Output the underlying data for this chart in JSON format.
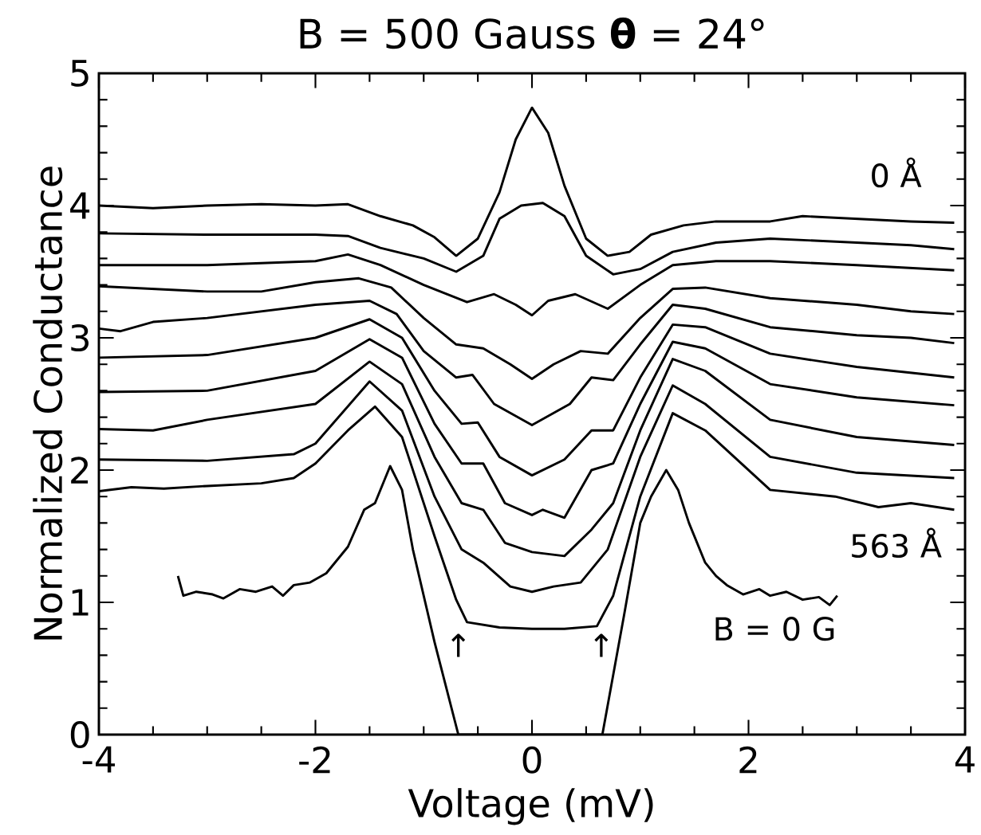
{
  "chart_data": {
    "type": "line",
    "title": "B = 500 Gauss  **θ** = 24°",
    "xlabel": "Voltage (mV)",
    "ylabel": "Normalized Conductance",
    "xlim": [
      -4,
      4
    ],
    "ylim": [
      0,
      5
    ],
    "xticks": [
      -4,
      -2,
      0,
      2,
      4
    ],
    "yticks": [
      0,
      1,
      2,
      3,
      4,
      5
    ],
    "line_style": "solid",
    "series": [
      {
        "color": "#000000",
        "x": [
          -4,
          -3.5,
          -3,
          -2.5,
          -2,
          -1.7,
          -1.4,
          -1.1,
          -0.9,
          -0.7,
          -0.5,
          -0.3,
          -0.15,
          0,
          0.15,
          0.3,
          0.5,
          0.7,
          0.9,
          1.1,
          1.4,
          1.7,
          2.2,
          2.5,
          3,
          3.5,
          3.9
        ],
        "values": [
          4.0,
          3.98,
          4.0,
          4.01,
          4.0,
          4.01,
          3.92,
          3.85,
          3.76,
          3.62,
          3.75,
          4.1,
          4.5,
          4.74,
          4.55,
          4.15,
          3.75,
          3.62,
          3.65,
          3.78,
          3.85,
          3.88,
          3.88,
          3.92,
          3.9,
          3.88,
          3.87
        ]
      },
      {
        "color": "#000000",
        "x": [
          -4,
          -3,
          -2,
          -1.7,
          -1.4,
          -1.0,
          -0.7,
          -0.45,
          -0.3,
          -0.1,
          0.1,
          0.3,
          0.5,
          0.75,
          1.0,
          1.3,
          1.7,
          2.2,
          3,
          3.5,
          3.9
        ],
        "values": [
          3.79,
          3.78,
          3.78,
          3.77,
          3.68,
          3.6,
          3.5,
          3.62,
          3.9,
          4.0,
          4.02,
          3.92,
          3.62,
          3.48,
          3.52,
          3.65,
          3.72,
          3.75,
          3.72,
          3.7,
          3.67
        ]
      },
      {
        "color": "#000000",
        "x": [
          -4,
          -3,
          -2,
          -1.7,
          -1.4,
          -1.0,
          -0.6,
          -0.35,
          -0.15,
          0,
          0.15,
          0.4,
          0.7,
          1.0,
          1.3,
          1.7,
          2.2,
          3,
          3.9
        ],
        "values": [
          3.55,
          3.55,
          3.58,
          3.63,
          3.55,
          3.4,
          3.27,
          3.33,
          3.25,
          3.17,
          3.28,
          3.33,
          3.22,
          3.4,
          3.55,
          3.58,
          3.58,
          3.55,
          3.51
        ]
      },
      {
        "color": "#000000",
        "x": [
          -4,
          -3,
          -2.5,
          -2,
          -1.6,
          -1.3,
          -1,
          -0.7,
          -0.45,
          -0.2,
          0,
          0.2,
          0.45,
          0.7,
          1.0,
          1.3,
          1.6,
          2.2,
          3,
          3.5,
          3.9
        ],
        "values": [
          3.39,
          3.35,
          3.35,
          3.42,
          3.45,
          3.38,
          3.15,
          2.95,
          2.92,
          2.8,
          2.69,
          2.8,
          2.9,
          2.88,
          3.15,
          3.37,
          3.38,
          3.3,
          3.25,
          3.2,
          3.18
        ]
      },
      {
        "color": "#000000",
        "x": [
          -4,
          -3.8,
          -3.5,
          -3,
          -2,
          -1.5,
          -1.25,
          -1.0,
          -0.7,
          -0.55,
          -0.35,
          0,
          0.35,
          0.55,
          0.75,
          1.0,
          1.3,
          1.6,
          2.2,
          3,
          3.5,
          3.9
        ],
        "values": [
          3.07,
          3.05,
          3.12,
          3.15,
          3.25,
          3.28,
          3.18,
          2.9,
          2.7,
          2.72,
          2.5,
          2.34,
          2.5,
          2.7,
          2.68,
          2.95,
          3.25,
          3.22,
          3.08,
          3.02,
          3.0,
          2.96
        ]
      },
      {
        "color": "#000000",
        "x": [
          -4,
          -3,
          -2,
          -1.5,
          -1.2,
          -0.9,
          -0.65,
          -0.5,
          -0.3,
          0,
          0.3,
          0.55,
          0.75,
          1.0,
          1.3,
          1.6,
          2.2,
          3,
          3.9
        ],
        "values": [
          2.85,
          2.87,
          3.0,
          3.14,
          3.0,
          2.6,
          2.35,
          2.36,
          2.1,
          1.96,
          2.08,
          2.3,
          2.3,
          2.7,
          3.1,
          3.08,
          2.88,
          2.78,
          2.7
        ]
      },
      {
        "color": "#000000",
        "x": [
          -4,
          -3,
          -2,
          -1.5,
          -1.2,
          -0.9,
          -0.65,
          -0.45,
          -0.25,
          0,
          0.1,
          0.3,
          0.55,
          0.75,
          1.0,
          1.3,
          1.6,
          2.2,
          3,
          3.9
        ],
        "values": [
          2.59,
          2.6,
          2.75,
          2.99,
          2.85,
          2.35,
          2.05,
          2.05,
          1.75,
          1.66,
          1.7,
          1.64,
          2.0,
          2.05,
          2.5,
          2.97,
          2.92,
          2.65,
          2.55,
          2.49
        ]
      },
      {
        "color": "#000000",
        "x": [
          -4,
          -3.5,
          -3,
          -2,
          -1.5,
          -1.2,
          -0.9,
          -0.65,
          -0.45,
          -0.25,
          0,
          0.3,
          0.55,
          0.75,
          1.0,
          1.3,
          1.6,
          2.2,
          3,
          3.9
        ],
        "values": [
          2.31,
          2.3,
          2.38,
          2.5,
          2.82,
          2.65,
          2.1,
          1.75,
          1.7,
          1.45,
          1.38,
          1.35,
          1.55,
          1.75,
          2.3,
          2.84,
          2.75,
          2.38,
          2.25,
          2.19
        ]
      },
      {
        "color": "#000000",
        "x": [
          -4,
          -3,
          -2.2,
          -2,
          -1.5,
          -1.2,
          -0.9,
          -0.65,
          -0.45,
          -0.2,
          0,
          0.2,
          0.45,
          0.7,
          1.0,
          1.3,
          1.6,
          2.2,
          3,
          3.9
        ],
        "values": [
          2.08,
          2.07,
          2.12,
          2.2,
          2.67,
          2.45,
          1.8,
          1.4,
          1.3,
          1.12,
          1.08,
          1.12,
          1.15,
          1.4,
          2.1,
          2.64,
          2.5,
          2.1,
          1.98,
          1.94
        ]
      },
      {
        "color": "#000000",
        "x": [
          -4,
          -3.7,
          -3.4,
          -3,
          -2.5,
          -2.2,
          -2,
          -1.7,
          -1.45,
          -1.2,
          -0.9,
          -0.7,
          -0.6,
          -0.3,
          0,
          0.3,
          0.6,
          0.75,
          1.0,
          1.3,
          1.6,
          2.2,
          2.8,
          3.2,
          3.5,
          3.9
        ],
        "values": [
          1.84,
          1.87,
          1.86,
          1.88,
          1.9,
          1.94,
          2.05,
          2.3,
          2.48,
          2.25,
          1.5,
          1.02,
          0.85,
          0.81,
          0.8,
          0.8,
          0.82,
          1.05,
          1.8,
          2.43,
          2.3,
          1.85,
          1.8,
          1.72,
          1.75,
          1.7
        ]
      },
      {
        "color": "#000000",
        "x": [
          -3.27,
          -3.22,
          -3.1,
          -2.95,
          -2.85,
          -2.7,
          -2.55,
          -2.4,
          -2.3,
          -2.2,
          -2.05,
          -1.9,
          -1.7,
          -1.55,
          -1.45,
          -1.31,
          -1.2,
          -1.1,
          -0.9,
          -0.68,
          0,
          0.65,
          0.85,
          1.0,
          1.1,
          1.24,
          1.35,
          1.45,
          1.6,
          1.7,
          1.8,
          1.95,
          2.1,
          2.2,
          2.35,
          2.5,
          2.65,
          2.75,
          2.82
        ],
        "values": [
          1.2,
          1.05,
          1.08,
          1.06,
          1.03,
          1.1,
          1.08,
          1.12,
          1.05,
          1.13,
          1.15,
          1.22,
          1.42,
          1.7,
          1.75,
          2.03,
          1.85,
          1.4,
          0.7,
          0,
          0,
          0,
          0.9,
          1.6,
          1.8,
          2.0,
          1.85,
          1.6,
          1.3,
          1.2,
          1.13,
          1.06,
          1.1,
          1.05,
          1.08,
          1.02,
          1.04,
          0.98,
          1.05
        ]
      }
    ],
    "annotations": [
      "0 Å",
      "563 Å",
      "B = 0 G",
      "↑",
      "↑"
    ]
  }
}
